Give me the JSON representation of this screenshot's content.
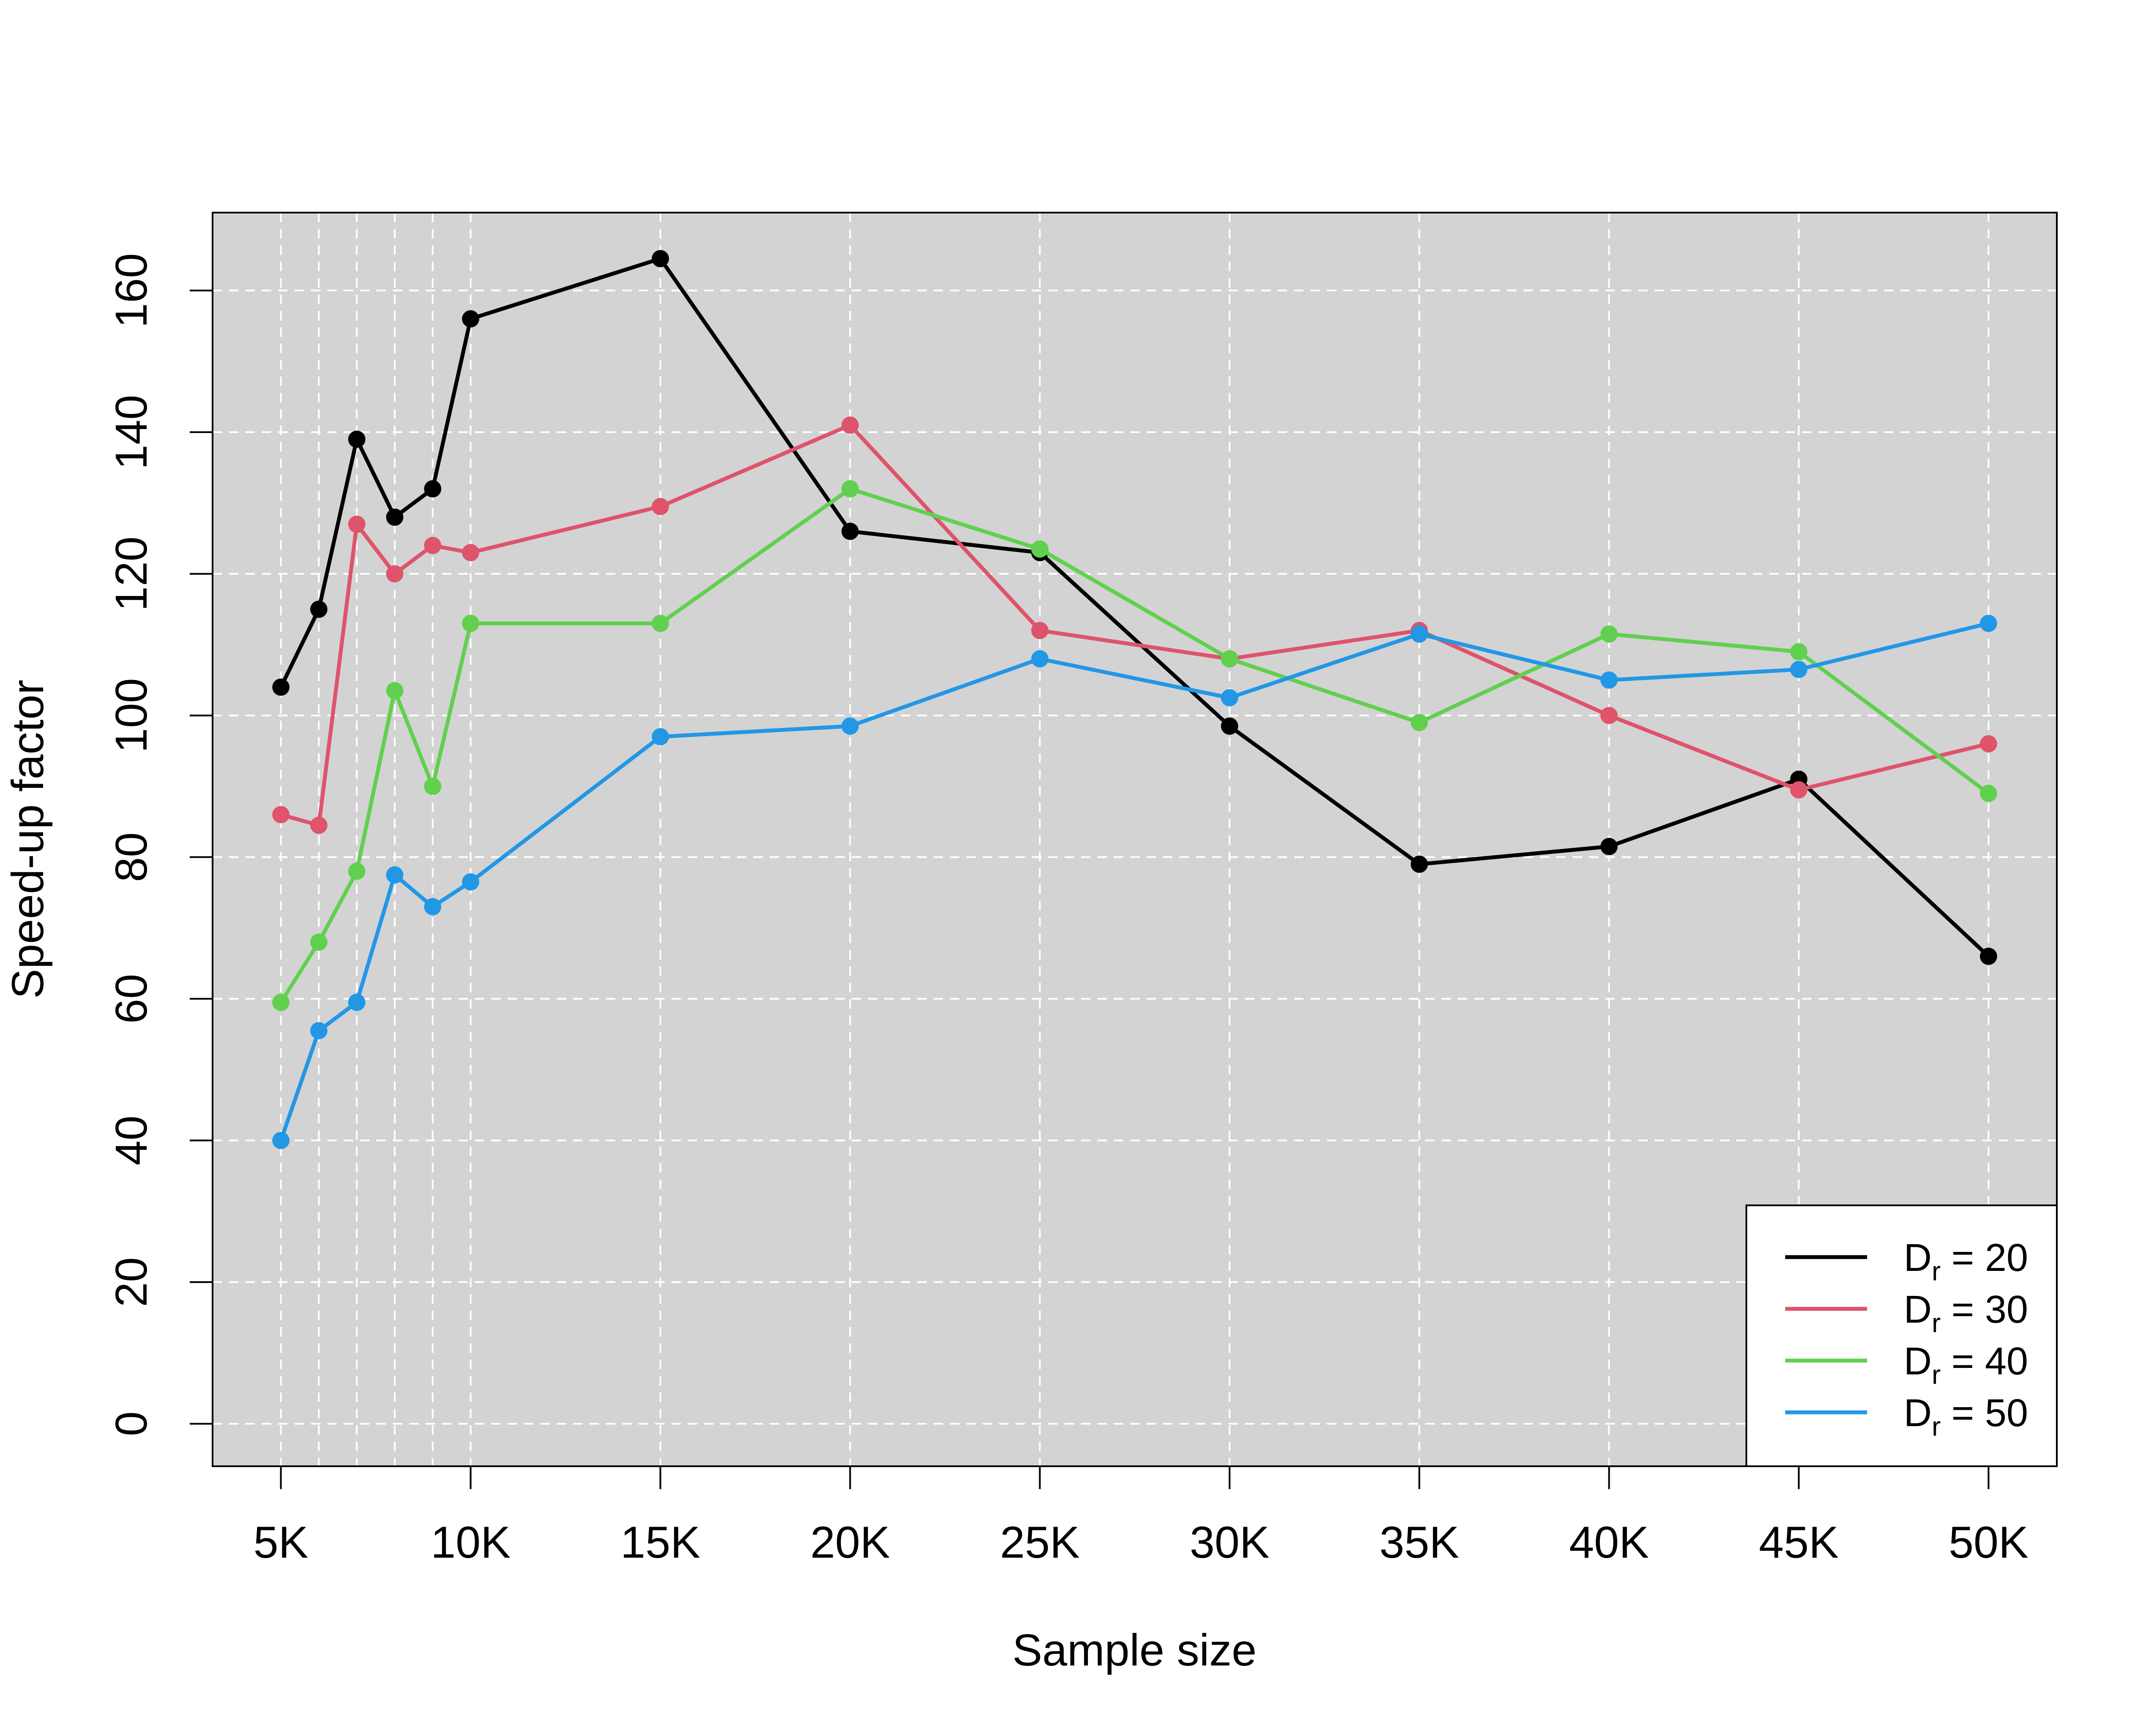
{
  "chart_data": {
    "type": "line",
    "title": "",
    "xlabel": "Sample size",
    "ylabel": "Speed-up factor",
    "x": [
      5000,
      6000,
      7000,
      8000,
      9000,
      10000,
      15000,
      20000,
      25000,
      30000,
      35000,
      40000,
      45000,
      50000
    ],
    "xticks": [
      5000,
      10000,
      15000,
      20000,
      25000,
      30000,
      35000,
      40000,
      45000,
      50000
    ],
    "xtick_labels": [
      "5K",
      "10K",
      "15K",
      "20K",
      "25K",
      "30K",
      "35K",
      "40K",
      "45K",
      "50K"
    ],
    "yticks": [
      0,
      20,
      40,
      60,
      80,
      100,
      120,
      140,
      160
    ],
    "ytick_labels": [
      "0",
      "20",
      "40",
      "60",
      "80",
      "100",
      "120",
      "140",
      "160"
    ],
    "xlim": [
      3200,
      51800
    ],
    "ylim": [
      -6,
      171
    ],
    "grid": true,
    "background": "#d3d3d3",
    "legend_position": "bottom-right",
    "series": [
      {
        "name": "D",
        "sub": "r",
        "eq": " = ",
        "num": "20",
        "color": "#000000",
        "values": [
          104,
          115,
          139,
          128,
          132,
          156,
          164.5,
          126,
          123,
          98.5,
          79,
          81.5,
          91,
          66
        ]
      },
      {
        "name": "D",
        "sub": "r",
        "eq": " = ",
        "num": "30",
        "color": "#df536b",
        "values": [
          86,
          84.5,
          127,
          120,
          124,
          123,
          129.5,
          141,
          112,
          108,
          112,
          100,
          89.5,
          96
        ]
      },
      {
        "name": "D",
        "sub": "r",
        "eq": " = ",
        "num": "40",
        "color": "#61d04f",
        "values": [
          59.5,
          68,
          78,
          103.5,
          90,
          113,
          113,
          132,
          123.5,
          108,
          99,
          111.5,
          109,
          89
        ]
      },
      {
        "name": "D",
        "sub": "r",
        "eq": " = ",
        "num": "50",
        "color": "#2297e6",
        "values": [
          40,
          55.5,
          59.5,
          77.5,
          73,
          76.5,
          97,
          98.5,
          108,
          102.5,
          111.5,
          105,
          106.5,
          113
        ]
      }
    ]
  }
}
